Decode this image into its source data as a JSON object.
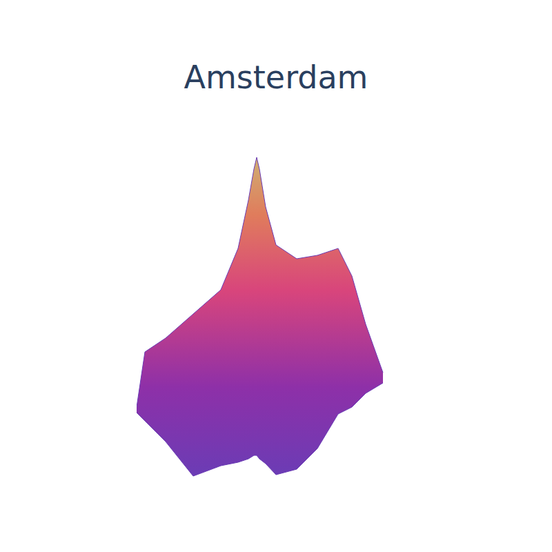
{
  "chart_data": {
    "type": "area",
    "title": "Amsterdam",
    "x": [
      0,
      12,
      42,
      82,
      122,
      147,
      162,
      170,
      174,
      178,
      187,
      202,
      232,
      262,
      292,
      312,
      332,
      357
    ],
    "values": [
      [
        102,
        110
      ],
      [
        90,
        190
      ],
      [
        60,
        210
      ],
      [
        10,
        245
      ],
      [
        25,
        280
      ],
      [
        30,
        340
      ],
      [
        35,
        410
      ],
      [
        40,
        455
      ],
      [
        40,
        472
      ],
      [
        35,
        455
      ],
      [
        28,
        400
      ],
      [
        12,
        345
      ],
      [
        20,
        325
      ],
      [
        50,
        330
      ],
      [
        100,
        340
      ],
      [
        110,
        300
      ],
      [
        130,
        230
      ],
      [
        145,
        160
      ]
    ],
    "xlim": [
      0,
      360
    ],
    "ylim": [
      0,
      500
    ],
    "color": "#6b3cb5",
    "tick_labels": false,
    "grid": false
  }
}
